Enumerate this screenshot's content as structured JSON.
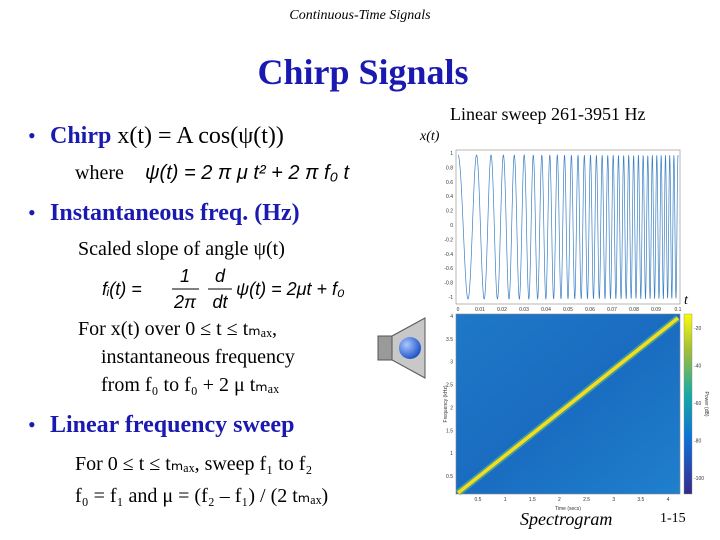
{
  "header": {
    "title": "Continuous-Time Signals"
  },
  "title": "Chirp Signals",
  "chirp": {
    "label": "Chirp",
    "definition": "x(t) = A cos(ψ(t))",
    "where": "where",
    "angle": "ψ(t) = 2 π μ t² + 2 π f₀ t"
  },
  "instantaneous": {
    "label": "Instantaneous freq. (Hz)",
    "slope": "Scaled slope of angle ψ(t)",
    "formula": {
      "lhs": "fᵢ(t) =",
      "frac1_num": "1",
      "frac1_den": "2π",
      "frac2_num": "d",
      "frac2_den": "dt",
      "rhs": "ψ(t) = 2μt + f₀"
    },
    "note": [
      "For x(t) over 0 ≤ t ≤ tₘₐₓ,",
      "instantaneous frequency",
      "from f₀ to f₀ + 2 μ tₘₐₓ"
    ]
  },
  "sweep": {
    "label": "Linear frequency sweep",
    "lines": [
      "For 0 ≤ t ≤ tₘₐₓ, sweep f₁ to f₂",
      "f₀ = f₁ and μ = (f₂ – f₁) / (2 tₘₐₓ)"
    ]
  },
  "figure": {
    "caption": "Linear sweep 261-3951 Hz",
    "signal_label": "x(t)",
    "time_label": "t",
    "spectrogram_label": "Spectrogram",
    "waveform": {
      "yticks": [
        "1",
        "0.8",
        "0.6",
        "0.4",
        "0.2",
        "0",
        "-0.2",
        "-0.4",
        "-0.6",
        "-0.8",
        "-1"
      ],
      "xticks": [
        "0",
        "0.01",
        "0.02",
        "0.03",
        "0.04",
        "0.05",
        "0.06",
        "0.07",
        "0.08",
        "0.09",
        "0.1"
      ]
    },
    "spectrogram": {
      "ylabel": "Frequency (kHz)",
      "xlabel": "Time (secs)",
      "colorbar_label": "Power (dB)",
      "yticks": [
        "4",
        "3.5",
        "3",
        "2.5",
        "2",
        "1.5",
        "1",
        "0.5"
      ],
      "xticks": [
        "0.5",
        "1",
        "1.5",
        "2",
        "2.5",
        "3",
        "3.5",
        "4"
      ],
      "colorbar_ticks": [
        "-20",
        "-40",
        "-60",
        "-80",
        "-100"
      ]
    }
  },
  "page_number": "1-15"
}
